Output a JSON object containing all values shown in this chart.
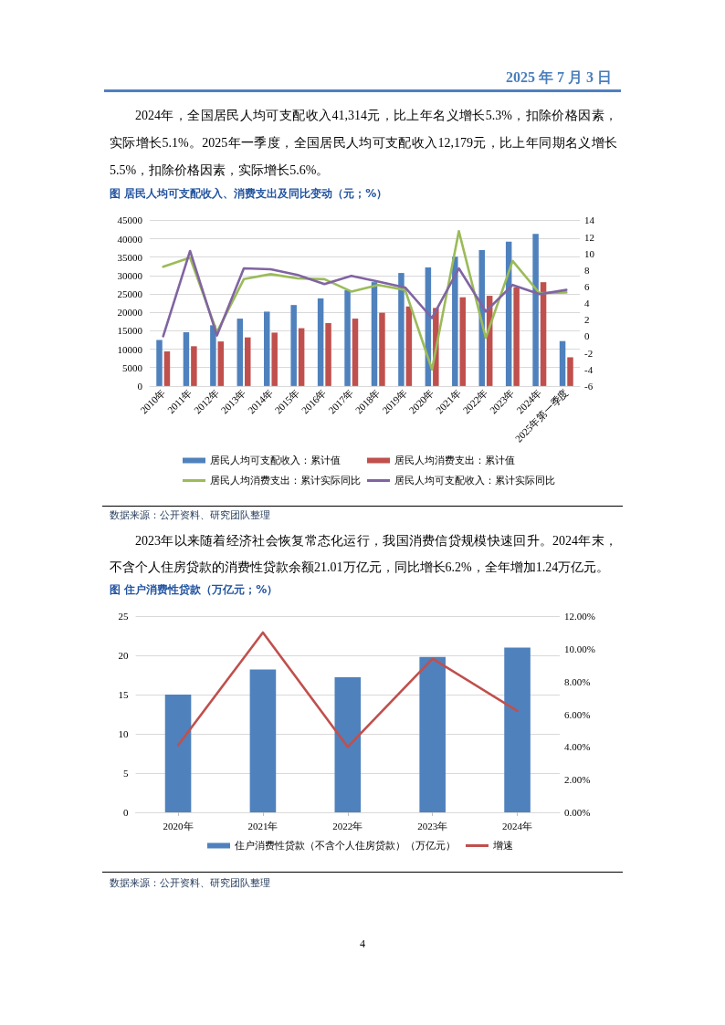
{
  "chart_data": [
    {
      "type": "bar",
      "title": "图 居民人均可支配收入、消费支出及同比变动（元；%）",
      "categories": [
        "2010年",
        "2011年",
        "2012年",
        "2013年",
        "2014年",
        "2015年",
        "2016年",
        "2017年",
        "2018年",
        "2019年",
        "2020年",
        "2021年",
        "2022年",
        "2023年",
        "2024年",
        "2025年第一季度"
      ],
      "series": [
        {
          "name": "居民人均可支配收入：累计值",
          "color": "#4f81bd",
          "values": [
            12500,
            14600,
            16500,
            18300,
            20200,
            22000,
            23800,
            26000,
            28200,
            30700,
            32200,
            35100,
            36900,
            39200,
            41300,
            12200
          ]
        },
        {
          "name": "居民人均消费支出：累计值",
          "color": "#c0504d",
          "values": [
            9400,
            10800,
            12100,
            13200,
            14500,
            15700,
            17100,
            18300,
            19900,
            21600,
            21200,
            24100,
            24500,
            26800,
            28200,
            7800
          ]
        },
        {
          "name": "居民人均消费支出：累计实际同比",
          "type": "line",
          "axis": "y2",
          "color": "#9bbb59",
          "values": [
            8.4,
            9.5,
            0.5,
            6.9,
            7.5,
            7.0,
            6.9,
            5.4,
            6.2,
            5.6,
            -4.0,
            12.7,
            -0.2,
            9.1,
            5.2,
            5.3
          ]
        },
        {
          "name": "居民人均可支配收入：累计实际同比",
          "type": "line",
          "axis": "y2",
          "color": "#8064a2",
          "values": [
            0,
            10.3,
            0.1,
            8.2,
            8.1,
            7.4,
            6.3,
            7.3,
            6.6,
            5.9,
            2.2,
            8.2,
            3.0,
            6.2,
            5.1,
            5.6
          ]
        }
      ],
      "ylim": [
        0,
        45000
      ],
      "yticks": [
        0,
        5000,
        10000,
        15000,
        20000,
        25000,
        30000,
        35000,
        40000,
        45000
      ],
      "y2lim": [
        -6,
        14
      ],
      "y2ticks": [
        -6,
        -4,
        -2,
        0,
        2,
        4,
        6,
        8,
        10,
        12,
        14
      ],
      "grid": "y",
      "legend": "bottom",
      "marker": "none",
      "line_style": "solid",
      "annotations": [
        "2025 年 7 月 3 日",
        "2024年，全国居民人均可支配收入41,314元，比上年名义增长5.3%，扣除价格因素，实际增长5.1%。2025年一季度，全国居民人均可支配收入12,179元，比上年同期名义增长5.5%，扣除价格因素，实际增长5.6%。",
        "数据来源：公开资料、研究团队整理"
      ]
    },
    {
      "type": "bar",
      "title": "图 住户消费性贷款（万亿元；%）",
      "categories": [
        "2020年",
        "2021年",
        "2022年",
        "2023年",
        "2024年"
      ],
      "series": [
        {
          "name": "住户消费性贷款（不含个人住房贷款）（万亿元）",
          "color": "#4f81bd",
          "values": [
            15.0,
            18.2,
            17.2,
            19.8,
            21.0
          ]
        },
        {
          "name": "增速",
          "type": "line",
          "axis": "y2",
          "color": "#c0504d",
          "values": [
            4.1,
            11.0,
            4.0,
            9.4,
            6.2
          ]
        }
      ],
      "ylim": [
        0,
        25
      ],
      "yticks": [
        0,
        5,
        10,
        15,
        20,
        25
      ],
      "y2lim": [
        0,
        12
      ],
      "y2ticks": [
        {
          "value": 0,
          "label": "0.00%"
        },
        {
          "value": 2,
          "label": "2.00%"
        },
        {
          "value": 4,
          "label": "4.00%"
        },
        {
          "value": 6,
          "label": "6.00%"
        },
        {
          "value": 8,
          "label": "8.00%"
        },
        {
          "value": 10,
          "label": "10.00%"
        },
        {
          "value": 12,
          "label": "12.00%"
        }
      ],
      "grid": "y",
      "legend": "bottom",
      "marker": "none",
      "line_style": "solid",
      "annotations": [
        "2023年以来随着经济社会恢复常态化运行，我国消费信贷规模快速回升。2024年末，不含个人住房贷款的消费性贷款余额21.01万亿元，同比增长6.2%，全年增加1.24万亿元。",
        "数据来源：公开资料、研究团队整理",
        "4"
      ]
    }
  ]
}
